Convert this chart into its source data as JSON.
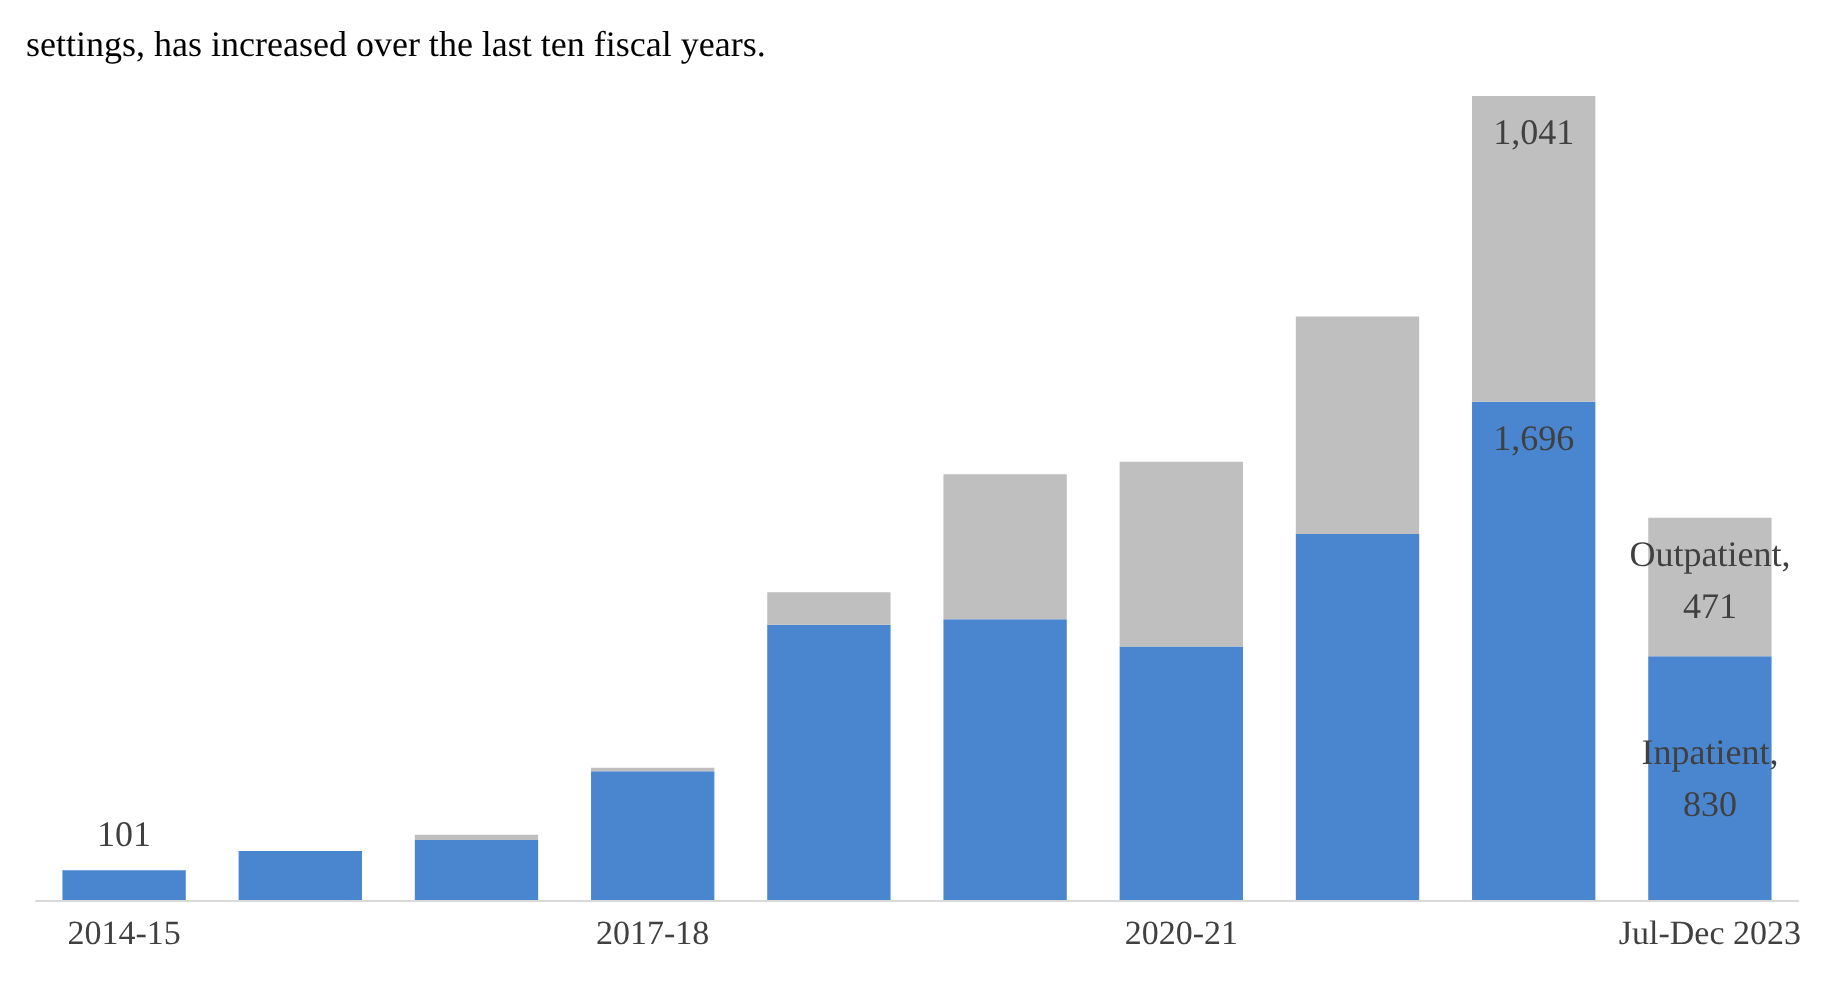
{
  "chart_data": {
    "type": "bar",
    "stacked": true,
    "title": "settings, has increased over the last ten fiscal years.",
    "categories": [
      "2014-15",
      null,
      null,
      "2017-18",
      null,
      null,
      "2020-21",
      null,
      null,
      "Jul-Dec 2023"
    ],
    "series": [
      {
        "name": "Inpatient,",
        "color": "#4a86d0",
        "values": [
          101,
          167,
          204,
          438,
          937,
          956,
          863,
          1246,
          1696,
          830
        ],
        "value_labels": [
          "101",
          null,
          null,
          null,
          null,
          null,
          null,
          null,
          "1,696",
          "830"
        ]
      },
      {
        "name": "Outpatient,",
        "color": "#bfbfbf",
        "values": [
          0,
          0,
          18,
          12,
          111,
          493,
          629,
          740,
          1041,
          471
        ],
        "value_labels": [
          null,
          null,
          null,
          null,
          null,
          null,
          null,
          null,
          "1,041",
          "471"
        ]
      }
    ]
  }
}
